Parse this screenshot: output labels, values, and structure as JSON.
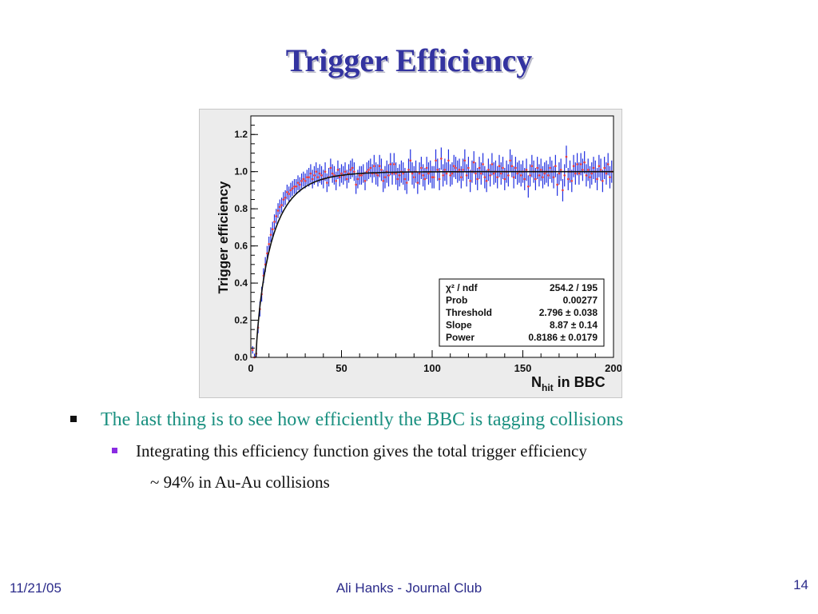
{
  "slide": {
    "title": "Trigger Efficiency",
    "bullets": [
      "The last thing is to see how efficiently the BBC is tagging collisions",
      "Integrating this efficiency function gives the total trigger efficiency",
      "~ 94% in Au-Au collisions"
    ],
    "footer": {
      "date": "11/21/05",
      "center": "Ali Hanks - Journal Club",
      "page": "14"
    }
  },
  "chart_data": {
    "type": "scatter",
    "title": "",
    "ylabel": "Trigger efficiency",
    "xlabel_main": "N",
    "xlabel_sub": "hit",
    "xlabel_suffix": " in BBC",
    "xlim": [
      0,
      200
    ],
    "ylim": [
      0,
      1.3
    ],
    "xticks": [
      "0",
      "50",
      "100",
      "150",
      "200"
    ],
    "yticks": [
      "0.0",
      "0.2",
      "0.4",
      "0.6",
      "0.8",
      "1.0",
      "1.2"
    ],
    "grid": false,
    "point_color": "#e8383d",
    "error_color": "#1f2ee0",
    "fit_color": "#111111",
    "fit": {
      "function": "1 - exp(-((x - threshold) / slope)^power)",
      "threshold": 2.796,
      "slope": 8.87,
      "power": 0.8186
    },
    "stats_box": {
      "position": "bottom-right",
      "rows": [
        [
          "χ² / ndf",
          "254.2 / 195"
        ],
        [
          "Prob",
          "0.00277"
        ],
        [
          "Threshold",
          "2.796 ± 0.038"
        ],
        [
          "Slope",
          "8.87 ± 0.14"
        ],
        [
          "Power",
          "0.8186 ± 0.0179"
        ]
      ]
    },
    "points": [
      [
        1,
        0.04,
        0.02
      ],
      [
        2,
        0.0,
        0.02
      ],
      [
        3,
        0.02,
        0.03
      ],
      [
        4,
        0.16,
        0.03
      ],
      [
        5,
        0.26,
        0.04
      ],
      [
        6,
        0.34,
        0.04
      ],
      [
        7,
        0.44,
        0.04
      ],
      [
        8,
        0.5,
        0.04
      ],
      [
        9,
        0.56,
        0.04
      ],
      [
        10,
        0.61,
        0.04
      ],
      [
        11,
        0.66,
        0.04
      ],
      [
        12,
        0.69,
        0.04
      ],
      [
        13,
        0.73,
        0.04
      ],
      [
        14,
        0.76,
        0.04
      ],
      [
        15,
        0.79,
        0.04
      ],
      [
        16,
        0.81,
        0.04
      ],
      [
        17,
        0.82,
        0.04
      ],
      [
        18,
        0.85,
        0.04
      ],
      [
        19,
        0.86,
        0.04
      ],
      [
        20,
        0.89,
        0.04
      ],
      [
        21,
        0.88,
        0.04
      ],
      [
        22,
        0.9,
        0.04
      ],
      [
        23,
        0.91,
        0.04
      ],
      [
        24,
        0.92,
        0.04
      ],
      [
        25,
        0.92,
        0.04
      ],
      [
        26,
        0.94,
        0.04
      ],
      [
        27,
        0.93,
        0.04
      ],
      [
        28,
        0.95,
        0.04
      ],
      [
        29,
        0.96,
        0.04
      ],
      [
        30,
        0.95,
        0.04
      ],
      [
        31,
        0.97,
        0.04
      ],
      [
        32,
        0.97,
        0.05
      ],
      [
        33,
        0.99,
        0.05
      ],
      [
        34,
        0.96,
        0.05
      ],
      [
        35,
        0.98,
        0.05
      ],
      [
        36,
        1.0,
        0.05
      ],
      [
        37,
        0.97,
        0.05
      ],
      [
        38,
        0.99,
        0.05
      ],
      [
        39,
        0.98,
        0.05
      ],
      [
        40,
        0.96,
        0.05
      ],
      [
        41,
        1.0,
        0.05
      ],
      [
        42,
        0.94,
        0.05
      ],
      [
        43,
        0.97,
        0.05
      ],
      [
        44,
        1.02,
        0.05
      ],
      [
        45,
        0.99,
        0.05
      ],
      [
        46,
        0.98,
        0.05
      ],
      [
        47,
        0.95,
        0.05
      ],
      [
        48,
        1.01,
        0.05
      ],
      [
        49,
        0.97,
        0.05
      ],
      [
        50,
        0.99,
        0.05
      ],
      [
        51,
        0.98,
        0.05
      ],
      [
        52,
        1.0,
        0.05
      ],
      [
        53,
        0.96,
        0.05
      ],
      [
        54,
        0.99,
        0.05
      ],
      [
        55,
        1.01,
        0.05
      ],
      [
        56,
        1.02,
        0.05
      ],
      [
        57,
        1.0,
        0.05
      ],
      [
        58,
        0.93,
        0.05
      ],
      [
        59,
        0.96,
        0.05
      ],
      [
        60,
        0.98,
        0.05
      ],
      [
        61,
        0.98,
        0.05
      ],
      [
        62,
        0.99,
        0.05
      ],
      [
        63,
        0.95,
        0.05
      ],
      [
        64,
        1.0,
        0.05
      ],
      [
        65,
        1.01,
        0.05
      ],
      [
        66,
        1.02,
        0.05
      ],
      [
        67,
        0.99,
        0.05
      ],
      [
        68,
        1.03,
        0.06
      ],
      [
        69,
        0.99,
        0.06
      ],
      [
        70,
        0.98,
        0.06
      ],
      [
        71,
        1.03,
        0.06
      ],
      [
        72,
        1.01,
        0.06
      ],
      [
        73,
        0.95,
        0.06
      ],
      [
        74,
        0.97,
        0.06
      ],
      [
        75,
        1.0,
        0.06
      ],
      [
        76,
        0.98,
        0.06
      ],
      [
        77,
        1.04,
        0.06
      ],
      [
        78,
        0.99,
        0.06
      ],
      [
        79,
        1.04,
        0.06
      ],
      [
        80,
        0.99,
        0.06
      ],
      [
        81,
        0.96,
        0.06
      ],
      [
        82,
        0.98,
        0.06
      ],
      [
        83,
        1.0,
        0.06
      ],
      [
        84,
        0.99,
        0.06
      ],
      [
        85,
        0.96,
        0.06
      ],
      [
        86,
        0.94,
        0.06
      ],
      [
        87,
        1.01,
        0.06
      ],
      [
        88,
        1.06,
        0.06
      ],
      [
        89,
        0.99,
        0.06
      ],
      [
        90,
        0.97,
        0.06
      ],
      [
        91,
        1.0,
        0.06
      ],
      [
        92,
        0.94,
        0.06
      ],
      [
        93,
        0.99,
        0.06
      ],
      [
        94,
        1.02,
        0.06
      ],
      [
        95,
        0.98,
        0.06
      ],
      [
        96,
        0.96,
        0.06
      ],
      [
        97,
        1.02,
        0.06
      ],
      [
        98,
        0.99,
        0.06
      ],
      [
        99,
        1.0,
        0.06
      ],
      [
        100,
        0.97,
        0.06
      ],
      [
        101,
        0.97,
        0.06
      ],
      [
        102,
        1.06,
        0.06
      ],
      [
        103,
        1.01,
        0.06
      ],
      [
        104,
        0.96,
        0.06
      ],
      [
        105,
        1.07,
        0.06
      ],
      [
        106,
        0.98,
        0.06
      ],
      [
        107,
        1.01,
        0.06
      ],
      [
        108,
        0.99,
        0.06
      ],
      [
        109,
        1.06,
        0.06
      ],
      [
        110,
        0.98,
        0.06
      ],
      [
        111,
        0.99,
        0.06
      ],
      [
        112,
        1.03,
        0.06
      ],
      [
        113,
        1.02,
        0.06
      ],
      [
        114,
        1.0,
        0.06
      ],
      [
        115,
        1.01,
        0.06
      ],
      [
        116,
        0.97,
        0.06
      ],
      [
        117,
        1.01,
        0.06
      ],
      [
        118,
        1.06,
        0.06
      ],
      [
        119,
        0.98,
        0.06
      ],
      [
        120,
        1.02,
        0.06
      ],
      [
        121,
        0.95,
        0.06
      ],
      [
        122,
        1.0,
        0.06
      ],
      [
        123,
        1.05,
        0.06
      ],
      [
        124,
        0.99,
        0.06
      ],
      [
        125,
        0.96,
        0.06
      ],
      [
        126,
        1.02,
        0.06
      ],
      [
        127,
        0.99,
        0.06
      ],
      [
        128,
        1.04,
        0.06
      ],
      [
        129,
        0.97,
        0.06
      ],
      [
        130,
        0.95,
        0.06
      ],
      [
        131,
        1.01,
        0.06
      ],
      [
        132,
        0.98,
        0.06
      ],
      [
        133,
        1.04,
        0.06
      ],
      [
        134,
        0.99,
        0.06
      ],
      [
        135,
        1.0,
        0.06
      ],
      [
        136,
        0.97,
        0.06
      ],
      [
        137,
        1.03,
        0.06
      ],
      [
        138,
        0.99,
        0.06
      ],
      [
        139,
        1.02,
        0.06
      ],
      [
        140,
        0.96,
        0.06
      ],
      [
        141,
        1.0,
        0.06
      ],
      [
        142,
        0.98,
        0.06
      ],
      [
        143,
        1.06,
        0.06
      ],
      [
        144,
        1.03,
        0.06
      ],
      [
        145,
        0.97,
        0.06
      ],
      [
        146,
        1.02,
        0.06
      ],
      [
        147,
        0.99,
        0.06
      ],
      [
        148,
        1.0,
        0.06
      ],
      [
        149,
        0.98,
        0.06
      ],
      [
        150,
        1.0,
        0.06
      ],
      [
        151,
        0.96,
        0.06
      ],
      [
        152,
        1.01,
        0.06
      ],
      [
        153,
        0.92,
        0.06
      ],
      [
        154,
        0.98,
        0.06
      ],
      [
        155,
        1.03,
        0.06
      ],
      [
        156,
        1.0,
        0.06
      ],
      [
        157,
        0.96,
        0.06
      ],
      [
        158,
        1.02,
        0.06
      ],
      [
        159,
        0.98,
        0.06
      ],
      [
        160,
        1.01,
        0.06
      ],
      [
        161,
        0.97,
        0.06
      ],
      [
        162,
        0.99,
        0.06
      ],
      [
        163,
        1.0,
        0.06
      ],
      [
        164,
        0.98,
        0.06
      ],
      [
        165,
        1.02,
        0.06
      ],
      [
        166,
        1.0,
        0.06
      ],
      [
        167,
        0.97,
        0.06
      ],
      [
        168,
        1.03,
        0.06
      ],
      [
        169,
        0.93,
        0.06
      ],
      [
        170,
        0.99,
        0.06
      ],
      [
        171,
        1.01,
        0.06
      ],
      [
        172,
        0.9,
        0.06
      ],
      [
        173,
        0.98,
        0.06
      ],
      [
        174,
        1.08,
        0.06
      ],
      [
        175,
        0.96,
        0.06
      ],
      [
        176,
        1.0,
        0.06
      ],
      [
        177,
        0.95,
        0.06
      ],
      [
        178,
        1.03,
        0.06
      ],
      [
        179,
        0.99,
        0.06
      ],
      [
        180,
        1.04,
        0.06
      ],
      [
        181,
        0.99,
        0.06
      ],
      [
        182,
        1.04,
        0.06
      ],
      [
        183,
        1.01,
        0.06
      ],
      [
        184,
        1.05,
        0.06
      ],
      [
        185,
        0.98,
        0.06
      ],
      [
        186,
        1.01,
        0.06
      ],
      [
        187,
        0.97,
        0.06
      ],
      [
        188,
        0.99,
        0.06
      ],
      [
        189,
        1.02,
        0.06
      ],
      [
        190,
        1.0,
        0.06
      ],
      [
        191,
        0.96,
        0.06
      ],
      [
        192,
        1.03,
        0.06
      ],
      [
        193,
        1.01,
        0.06
      ],
      [
        194,
        0.95,
        0.06
      ],
      [
        195,
        1.02,
        0.06
      ],
      [
        196,
        0.99,
        0.06
      ],
      [
        197,
        1.04,
        0.06
      ],
      [
        198,
        0.97,
        0.06
      ],
      [
        199,
        1.0,
        0.06
      ]
    ]
  }
}
